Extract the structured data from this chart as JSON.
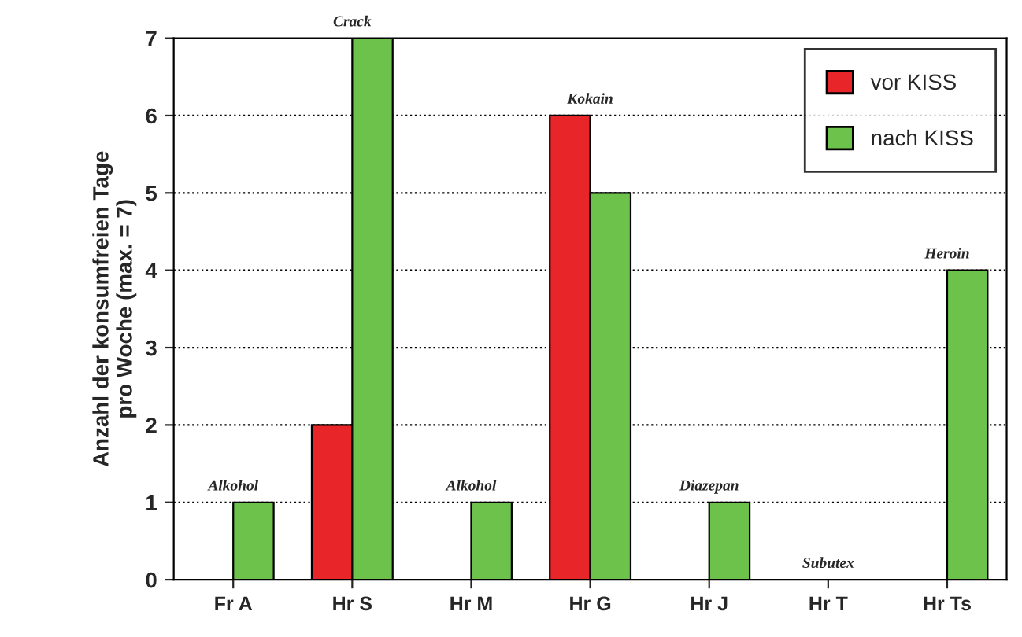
{
  "chart_data": {
    "type": "bar",
    "ylabel": "Anzahl der konsumfreien Tage\npro Woche (max. = 7)",
    "categories": [
      "Fr A",
      "Hr S",
      "Hr M",
      "Hr G",
      "Hr J",
      "Hr T",
      "Hr Ts"
    ],
    "series": [
      {
        "name": "vor KISS",
        "color": "#e8262a",
        "values": [
          null,
          2,
          null,
          6,
          null,
          null,
          null
        ]
      },
      {
        "name": "nach KISS",
        "color": "#6cc24a",
        "values": [
          1,
          7,
          1,
          5,
          1,
          null,
          4
        ]
      }
    ],
    "ylim": [
      0,
      7
    ],
    "yticks": [
      0,
      1,
      2,
      3,
      4,
      5,
      6,
      7
    ],
    "grid": "y",
    "legend": "top right",
    "annotations": [
      {
        "text": "Alkohol",
        "x": "Fr A",
        "y": 1
      },
      {
        "text": "Crack",
        "x": "Hr S",
        "y": 7
      },
      {
        "text": "Alkohol",
        "x": "Hr M",
        "y": 1
      },
      {
        "text": "Kokain",
        "x": "Hr G",
        "y": 6
      },
      {
        "text": "Diazepan",
        "x": "Hr J",
        "y": 1
      },
      "Subutex",
      {
        "text": "Heroin",
        "x": "Hr Ts",
        "y": 4
      }
    ]
  }
}
